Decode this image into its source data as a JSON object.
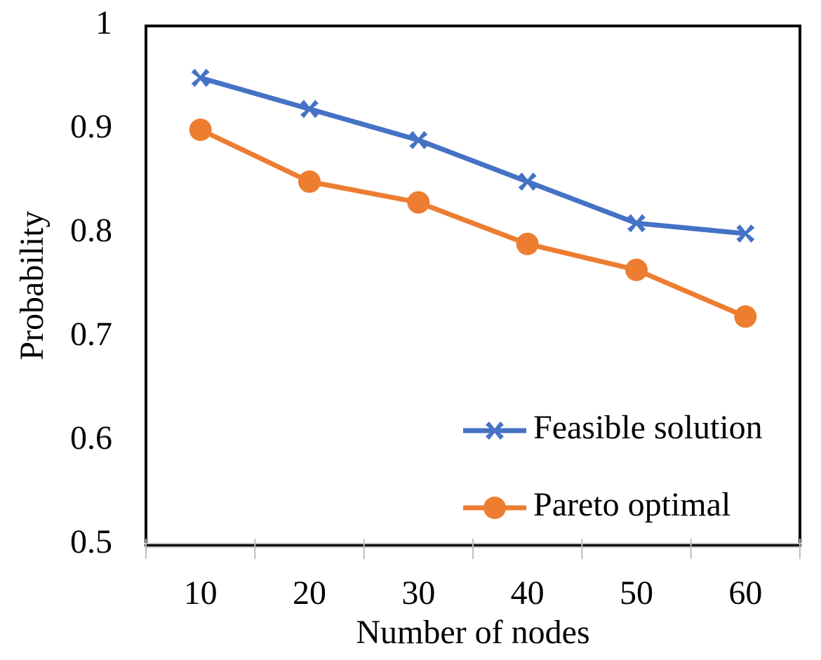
{
  "chart_data": {
    "type": "line",
    "x_label": "Number of nodes",
    "y_label": "Probability",
    "categories": [
      "10",
      "20",
      "30",
      "40",
      "50",
      "60"
    ],
    "series": [
      {
        "name": "Feasible solution",
        "color": "#4472c4",
        "marker": "cross",
        "values": [
          0.95,
          0.92,
          0.89,
          0.85,
          0.81,
          0.8
        ]
      },
      {
        "name": "Pareto optimal",
        "color": "#ed7d31",
        "marker": "circle",
        "values": [
          0.9,
          0.85,
          0.83,
          0.79,
          0.765,
          0.72
        ]
      }
    ],
    "ylim": [
      0.5,
      1
    ],
    "yticks": [
      0.5,
      0.6,
      0.7,
      0.8,
      0.9,
      1
    ],
    "grid": false,
    "legend": "lower right"
  }
}
